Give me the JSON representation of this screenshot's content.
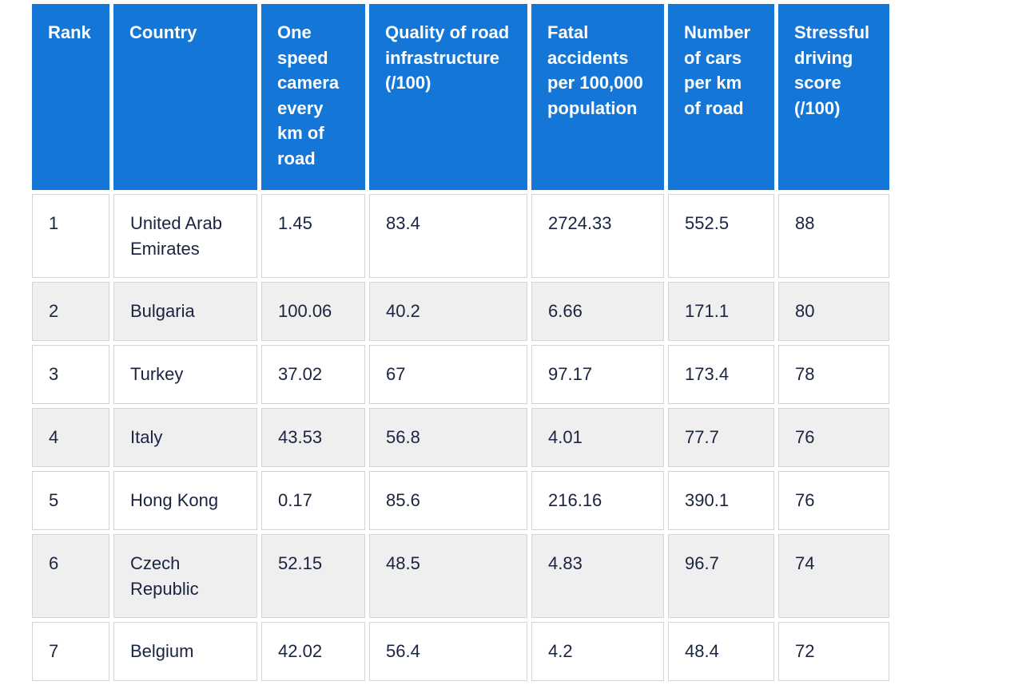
{
  "table": {
    "headers": [
      "Rank",
      "Country",
      "One speed camera every km of road",
      "Quality of road infrastructure (/100)",
      "Fatal accidents per 100,000 population",
      "Number of cars per km of road",
      "Stressful driving score (/100)"
    ],
    "rows": [
      [
        "1",
        "United Arab Emirates",
        "1.45",
        "83.4",
        "2724.33",
        "552.5",
        "88"
      ],
      [
        "2",
        "Bulgaria",
        "100.06",
        "40.2",
        "6.66",
        "171.1",
        "80"
      ],
      [
        "3",
        "Turkey",
        "37.02",
        "67",
        "97.17",
        "173.4",
        "78"
      ],
      [
        "4",
        "Italy",
        "43.53",
        "56.8",
        "4.01",
        "77.7",
        "76"
      ],
      [
        "5",
        "Hong Kong",
        "0.17",
        "85.6",
        "216.16",
        "390.1",
        "76"
      ],
      [
        "6",
        "Czech Republic",
        "52.15",
        "48.5",
        "4.83",
        "96.7",
        "74"
      ],
      [
        "7",
        "Belgium",
        "42.02",
        "56.4",
        "4.2",
        "48.4",
        "72"
      ]
    ]
  },
  "colors": {
    "header_bg": "#1476d6",
    "header_text": "#ffffff",
    "row_alt_bg": "#efefef",
    "body_text": "#1a2440"
  }
}
